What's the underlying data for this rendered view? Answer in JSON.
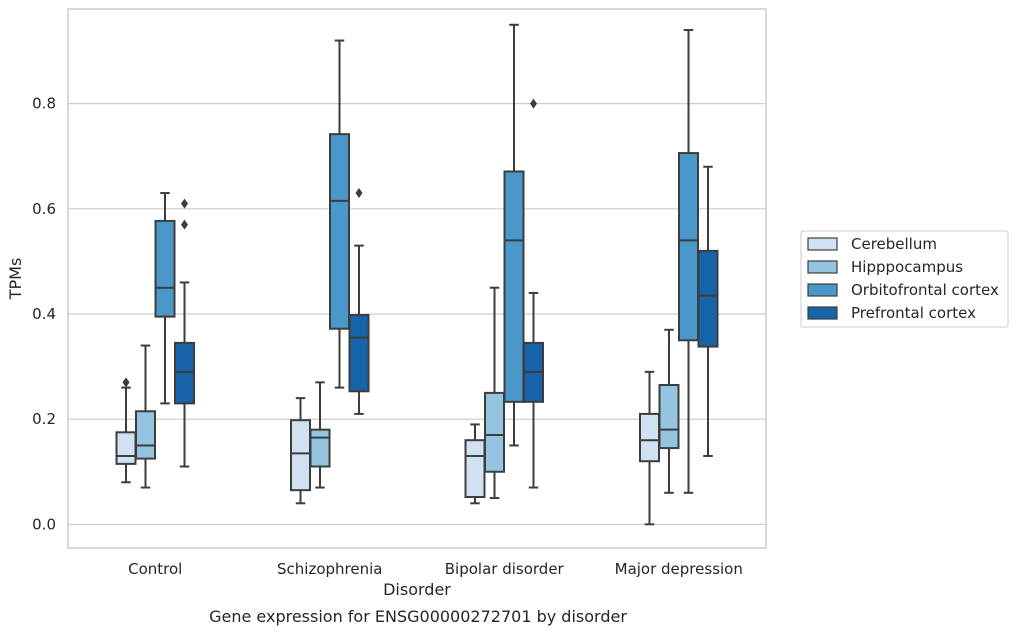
{
  "caption": "Gene expression for ENSG00000272701 by disorder",
  "colors": {
    "Cerebellum": "#d0e1f2",
    "Hipppocampus": "#94c4df",
    "Orbitofrontal cortex": "#4a98c9",
    "Prefrontal cortex": "#1764ab",
    "line": "#3d3d3d",
    "grid": "#cccccc",
    "frame": "#cccccc"
  },
  "chart_data": {
    "type": "box",
    "xlabel": "Disorder",
    "ylabel": "TPMs",
    "ylim": [
      -0.045,
      0.98
    ],
    "yticks": [
      0.0,
      0.2,
      0.4,
      0.6,
      0.8
    ],
    "ytick_labels": [
      "0.0",
      "0.2",
      "0.4",
      "0.6",
      "0.8"
    ],
    "grid": "y",
    "legend_position": "right",
    "categories": [
      "Control",
      "Schizophrenia",
      "Bipolar disorder",
      "Major depression"
    ],
    "series": [
      {
        "name": "Cerebellum",
        "boxes": [
          {
            "whislo": 0.08,
            "q1": 0.115,
            "med": 0.13,
            "q3": 0.175,
            "whishi": 0.26,
            "fliers": [
              0.27
            ]
          },
          {
            "whislo": 0.04,
            "q1": 0.065,
            "med": 0.135,
            "q3": 0.198,
            "whishi": 0.24,
            "fliers": []
          },
          {
            "whislo": 0.04,
            "q1": 0.052,
            "med": 0.13,
            "q3": 0.16,
            "whishi": 0.19,
            "fliers": []
          },
          {
            "whislo": 0.0,
            "q1": 0.12,
            "med": 0.16,
            "q3": 0.21,
            "whishi": 0.29,
            "fliers": []
          }
        ]
      },
      {
        "name": "Hipppocampus",
        "boxes": [
          {
            "whislo": 0.07,
            "q1": 0.125,
            "med": 0.15,
            "q3": 0.215,
            "whishi": 0.34,
            "fliers": []
          },
          {
            "whislo": 0.07,
            "q1": 0.11,
            "med": 0.165,
            "q3": 0.18,
            "whishi": 0.27,
            "fliers": []
          },
          {
            "whislo": 0.05,
            "q1": 0.1,
            "med": 0.17,
            "q3": 0.25,
            "whishi": 0.45,
            "fliers": []
          },
          {
            "whislo": 0.06,
            "q1": 0.145,
            "med": 0.18,
            "q3": 0.265,
            "whishi": 0.37,
            "fliers": []
          }
        ]
      },
      {
        "name": "Orbitofrontal cortex",
        "boxes": [
          {
            "whislo": 0.23,
            "q1": 0.395,
            "med": 0.45,
            "q3": 0.577,
            "whishi": 0.63,
            "fliers": []
          },
          {
            "whislo": 0.26,
            "q1": 0.372,
            "med": 0.615,
            "q3": 0.742,
            "whishi": 0.92,
            "fliers": []
          },
          {
            "whislo": 0.15,
            "q1": 0.233,
            "med": 0.54,
            "q3": 0.671,
            "whishi": 0.95,
            "fliers": []
          },
          {
            "whislo": 0.06,
            "q1": 0.35,
            "med": 0.54,
            "q3": 0.706,
            "whishi": 0.94,
            "fliers": []
          }
        ]
      },
      {
        "name": "Prefrontal cortex",
        "boxes": [
          {
            "whislo": 0.11,
            "q1": 0.23,
            "med": 0.29,
            "q3": 0.345,
            "whishi": 0.46,
            "fliers": [
              0.57,
              0.61
            ]
          },
          {
            "whislo": 0.21,
            "q1": 0.253,
            "med": 0.355,
            "q3": 0.398,
            "whishi": 0.53,
            "fliers": [
              0.63
            ]
          },
          {
            "whislo": 0.07,
            "q1": 0.233,
            "med": 0.29,
            "q3": 0.345,
            "whishi": 0.44,
            "fliers": [
              0.8
            ]
          },
          {
            "whislo": 0.13,
            "q1": 0.338,
            "med": 0.435,
            "q3": 0.52,
            "whishi": 0.68,
            "fliers": []
          }
        ]
      }
    ]
  }
}
